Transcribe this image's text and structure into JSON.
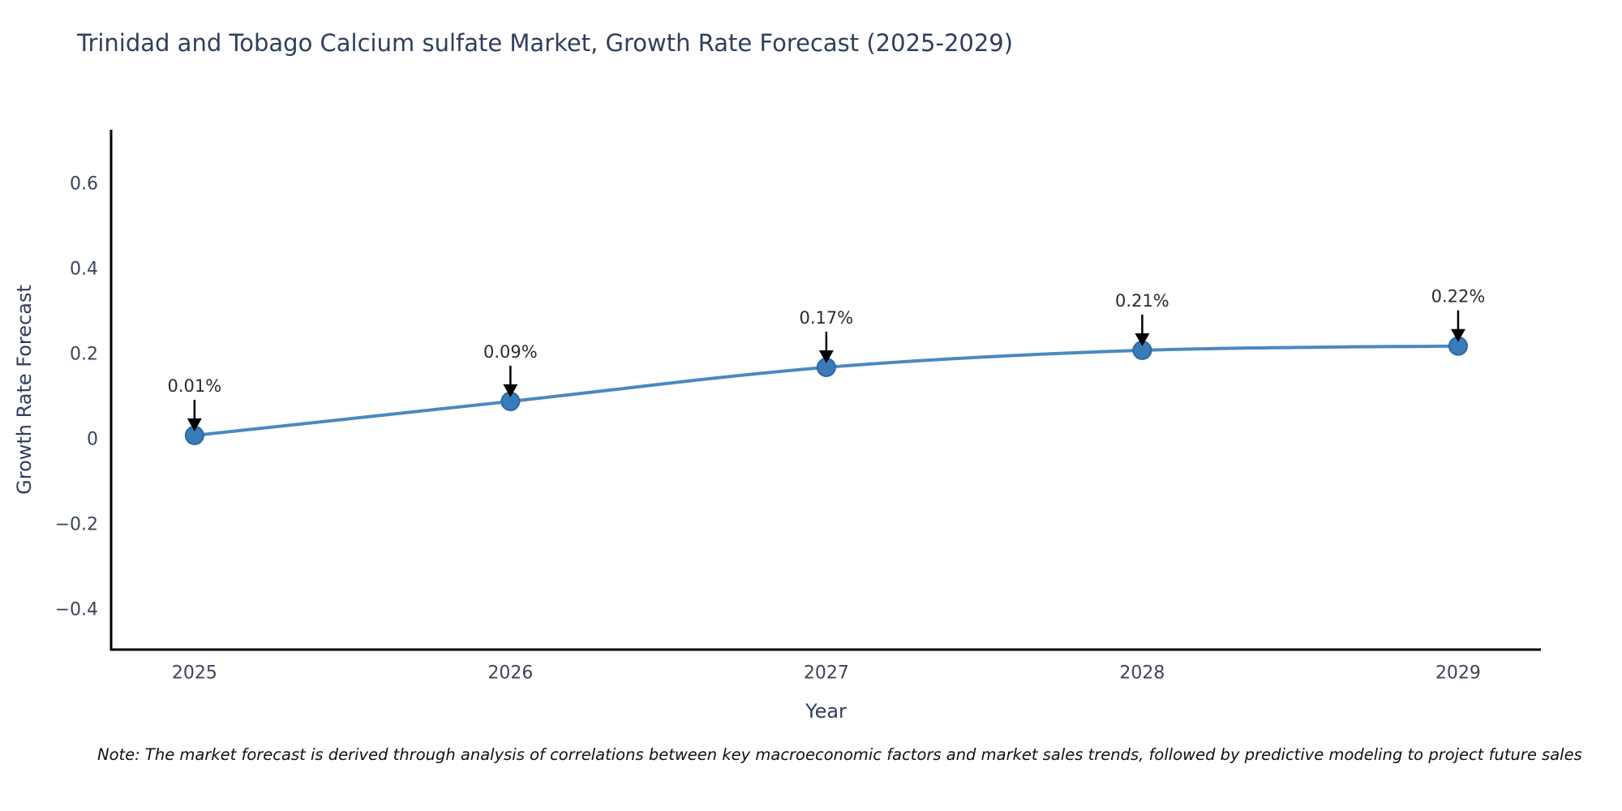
{
  "figure": {
    "note": "Note: The market forecast is derived through analysis of correlations between key macroeconomic factors and market sales trends, followed by predictive modeling to project future sales"
  },
  "chart_data": {
    "type": "line",
    "title": "Trinidad and Tobago Calcium sulfate Market, Growth Rate Forecast (2025-2029)",
    "xlabel": "Year",
    "ylabel": "Growth Rate Forecast",
    "x": [
      2025,
      2026,
      2027,
      2028,
      2029
    ],
    "y": [
      0.01,
      0.09,
      0.17,
      0.21,
      0.22
    ],
    "point_labels": [
      "0.01%",
      "0.09%",
      "0.17%",
      "0.21%",
      "0.22%"
    ],
    "xtick_labels": [
      "2025",
      "2026",
      "2027",
      "2028",
      "2029"
    ],
    "ytick_values": [
      0.6,
      0.4,
      0.2,
      0,
      -0.2,
      -0.4
    ],
    "ytick_labels": [
      "0.6",
      "0.4",
      "0.2",
      "0",
      "−0.2",
      "−0.4"
    ],
    "xlim": [
      2024.736,
      2029.262
    ],
    "ylim": [
      -0.493,
      0.728
    ],
    "grid": false,
    "legend": "none",
    "colors": {
      "line": "#4a89c0",
      "marker_fill": "#3a7cba",
      "marker_edge": "#2d66a3",
      "annotation_text": "#2b2b2b",
      "arrow": "#000000",
      "axis_spine": "#000000",
      "axis_label": "#2e3f5c",
      "tick_label": "#3c4659",
      "title": "#2e3f5c"
    }
  }
}
